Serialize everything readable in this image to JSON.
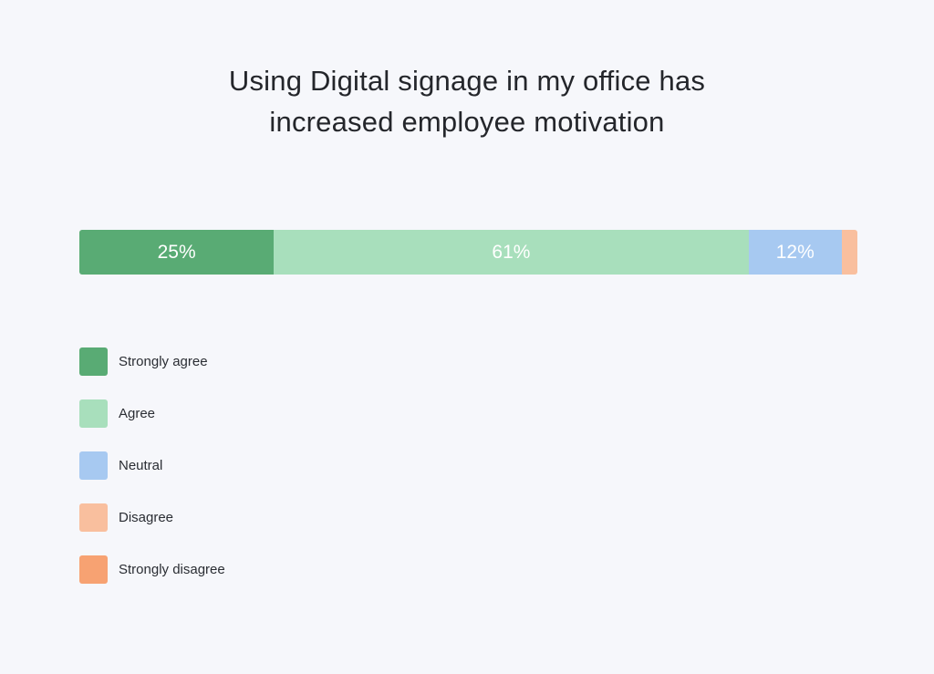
{
  "chart_data": {
    "type": "bar",
    "orientation": "horizontal",
    "stacked": true,
    "title": "Using Digital signage in my office has increased employee motivation",
    "title_lines": [
      "Using Digital signage in my office has",
      "increased employee motivation"
    ],
    "series": [
      {
        "name": "Strongly agree",
        "value": 25,
        "label": "25%",
        "color": "#59ab74"
      },
      {
        "name": "Agree",
        "value": 61,
        "label": "61%",
        "color": "#a8dfbc"
      },
      {
        "name": "Neutral",
        "value": 12,
        "label": "12%",
        "color": "#a7c9f1"
      },
      {
        "name": "Disagree",
        "value": 2,
        "label": "",
        "color": "#f9bf9e"
      },
      {
        "name": "Strongly disagree",
        "value": 0,
        "label": "",
        "color": "#f7a272"
      }
    ],
    "unit": "%",
    "legend_position": "bottom-left",
    "grid": false
  }
}
